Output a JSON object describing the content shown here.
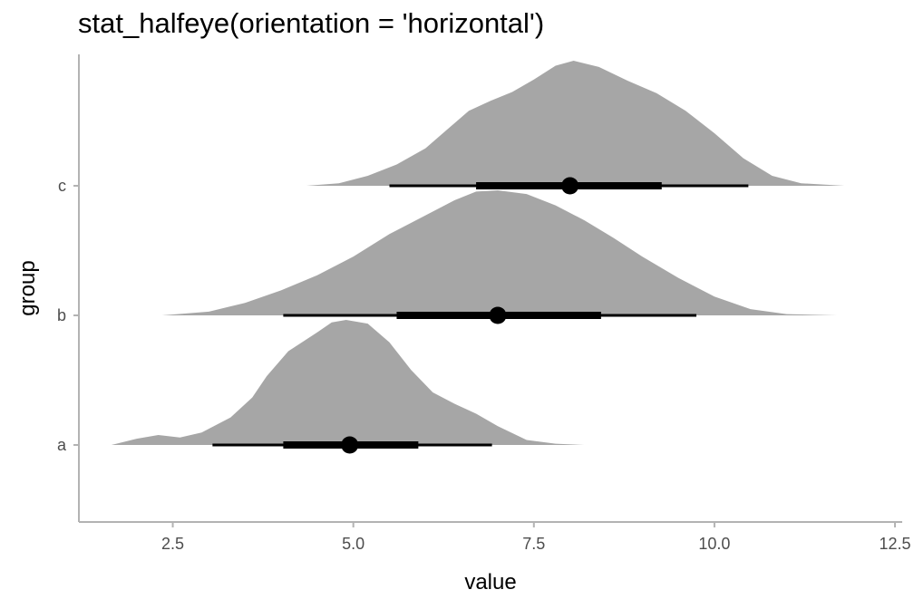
{
  "chart_data": {
    "type": "halfeye",
    "title": "stat_halfeye(orientation = 'horizontal')",
    "xlabel": "value",
    "ylabel": "group",
    "xlim": [
      1.2,
      12.6
    ],
    "x_ticks": [
      2.5,
      5.0,
      7.5,
      10.0,
      12.5
    ],
    "x_tick_labels": [
      "2.5",
      "5.0",
      "7.5",
      "10.0",
      "12.5"
    ],
    "categories": [
      "a",
      "b",
      "c"
    ],
    "density_color": "#a6a6a6",
    "interval_color": "#000000",
    "axis_color": "#b3b3b3",
    "series": [
      {
        "category": "a",
        "point": 4.95,
        "interval_66": [
          4.03,
          5.9
        ],
        "interval_95": [
          3.05,
          6.92
        ],
        "density": [
          [
            1.65,
            0.0
          ],
          [
            2.0,
            0.05
          ],
          [
            2.3,
            0.08
          ],
          [
            2.6,
            0.06
          ],
          [
            2.9,
            0.1
          ],
          [
            3.3,
            0.22
          ],
          [
            3.6,
            0.38
          ],
          [
            3.8,
            0.55
          ],
          [
            4.1,
            0.75
          ],
          [
            4.5,
            0.9
          ],
          [
            4.7,
            0.98
          ],
          [
            4.9,
            1.0
          ],
          [
            5.2,
            0.97
          ],
          [
            5.5,
            0.82
          ],
          [
            5.8,
            0.6
          ],
          [
            6.1,
            0.42
          ],
          [
            6.4,
            0.33
          ],
          [
            6.7,
            0.25
          ],
          [
            7.0,
            0.15
          ],
          [
            7.4,
            0.04
          ],
          [
            7.8,
            0.01
          ],
          [
            8.2,
            0.0
          ]
        ]
      },
      {
        "category": "b",
        "point": 7.0,
        "interval_66": [
          5.6,
          8.43
        ],
        "interval_95": [
          4.03,
          9.75
        ],
        "density": [
          [
            2.35,
            0.0
          ],
          [
            3.0,
            0.03
          ],
          [
            3.5,
            0.1
          ],
          [
            4.0,
            0.2
          ],
          [
            4.5,
            0.32
          ],
          [
            5.0,
            0.47
          ],
          [
            5.5,
            0.65
          ],
          [
            6.0,
            0.8
          ],
          [
            6.4,
            0.92
          ],
          [
            6.7,
            0.99
          ],
          [
            7.0,
            1.0
          ],
          [
            7.4,
            0.97
          ],
          [
            7.8,
            0.88
          ],
          [
            8.2,
            0.76
          ],
          [
            8.6,
            0.62
          ],
          [
            9.0,
            0.47
          ],
          [
            9.5,
            0.3
          ],
          [
            10.0,
            0.15
          ],
          [
            10.5,
            0.05
          ],
          [
            11.0,
            0.01
          ],
          [
            11.7,
            0.0
          ]
        ]
      },
      {
        "category": "c",
        "point": 8.0,
        "interval_66": [
          6.7,
          9.27
        ],
        "interval_95": [
          5.5,
          10.47
        ],
        "density": [
          [
            4.35,
            0.0
          ],
          [
            4.8,
            0.02
          ],
          [
            5.2,
            0.08
          ],
          [
            5.6,
            0.17
          ],
          [
            6.0,
            0.3
          ],
          [
            6.3,
            0.45
          ],
          [
            6.6,
            0.6
          ],
          [
            6.9,
            0.68
          ],
          [
            7.2,
            0.75
          ],
          [
            7.5,
            0.85
          ],
          [
            7.8,
            0.96
          ],
          [
            8.05,
            1.0
          ],
          [
            8.4,
            0.95
          ],
          [
            8.8,
            0.84
          ],
          [
            9.2,
            0.74
          ],
          [
            9.6,
            0.6
          ],
          [
            10.0,
            0.42
          ],
          [
            10.4,
            0.22
          ],
          [
            10.8,
            0.08
          ],
          [
            11.2,
            0.02
          ],
          [
            11.8,
            0.0
          ]
        ]
      }
    ]
  }
}
